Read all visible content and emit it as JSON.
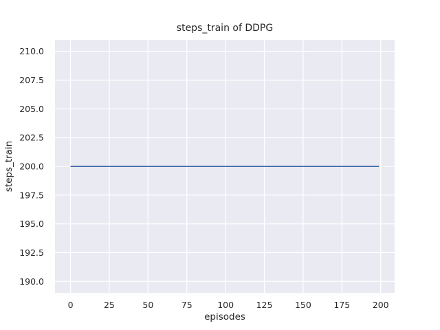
{
  "figure": {
    "title": "steps_train of DDPG",
    "xlabel": "episodes",
    "ylabel": "steps_train"
  },
  "chart_data": {
    "type": "line",
    "title": "steps_train of DDPG",
    "xlabel": "episodes",
    "ylabel": "steps_train",
    "x_ticks": [
      0,
      25,
      50,
      75,
      100,
      125,
      150,
      175,
      200
    ],
    "x_tick_labels": [
      "0",
      "25",
      "50",
      "75",
      "100",
      "125",
      "150",
      "175",
      "200"
    ],
    "y_ticks": [
      190.0,
      192.5,
      195.0,
      197.5,
      200.0,
      202.5,
      205.0,
      207.5,
      210.0
    ],
    "y_tick_labels": [
      "190.0",
      "192.5",
      "195.0",
      "197.5",
      "200.0",
      "202.5",
      "205.0",
      "207.5",
      "210.0"
    ],
    "xlim": [
      -10,
      209
    ],
    "ylim": [
      189,
      211
    ],
    "grid": true,
    "legend": "none",
    "series": [
      {
        "name": "steps_train",
        "color": "#4c72b0",
        "x": [
          0,
          199
        ],
        "y": [
          200,
          200
        ],
        "description": "constant value 200 for every episode from 0 to 199 (straight horizontal line)"
      }
    ],
    "colors": {
      "figure_background": "#ffffff",
      "plot_background": "#eaeaf2",
      "gridline": "#ffffff",
      "line": "#4c72b0",
      "text": "#262626"
    }
  }
}
